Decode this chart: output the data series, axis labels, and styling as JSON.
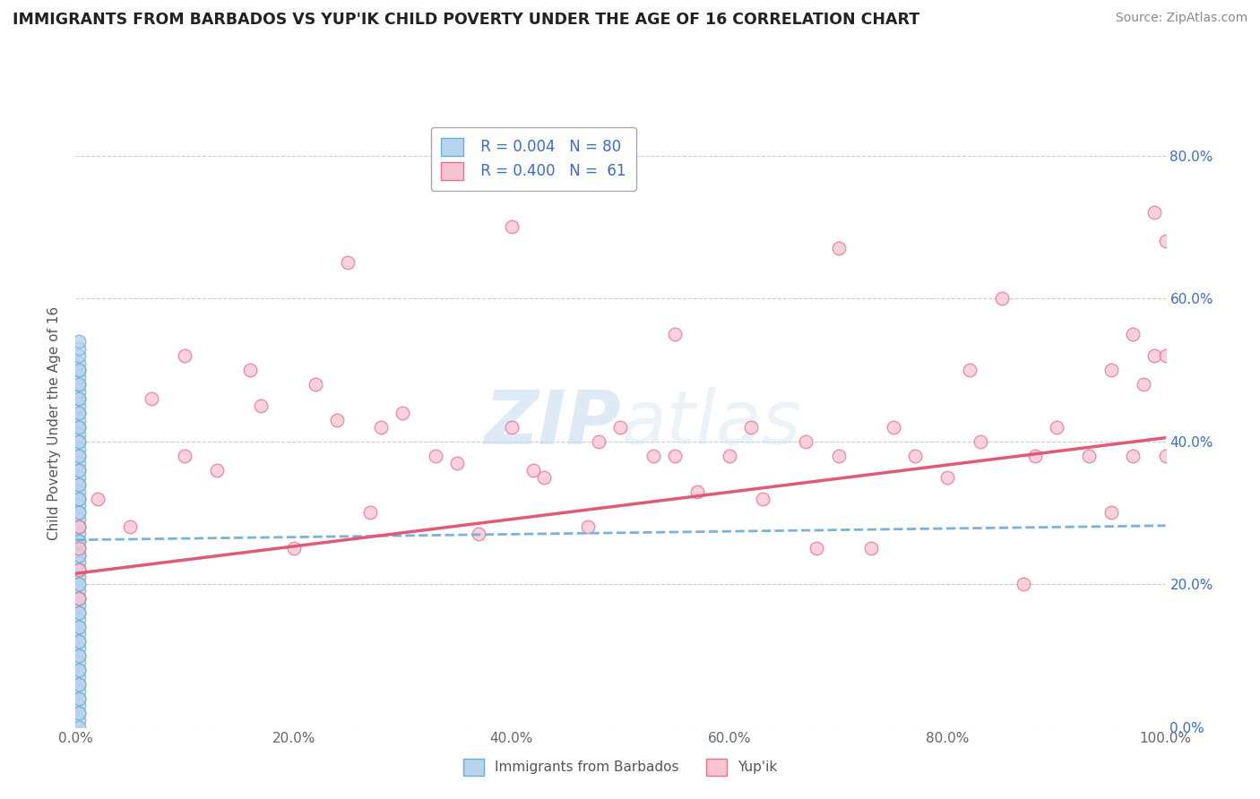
{
  "title": "IMMIGRANTS FROM BARBADOS VS YUP'IK CHILD POVERTY UNDER THE AGE OF 16 CORRELATION CHART",
  "source": "Source: ZipAtlas.com",
  "ylabel": "Child Poverty Under the Age of 16",
  "legend_labels": [
    "Immigrants from Barbados",
    "Yup'ik"
  ],
  "legend_r": [
    "R = 0.004",
    "R = 0.400"
  ],
  "legend_n": [
    "N = 80",
    "N =  61"
  ],
  "xlim": [
    0.0,
    1.0
  ],
  "ylim": [
    0.0,
    0.85
  ],
  "x_ticks": [
    0.0,
    0.2,
    0.4,
    0.6,
    0.8,
    1.0
  ],
  "x_tick_labels": [
    "0.0%",
    "20.0%",
    "40.0%",
    "60.0%",
    "80.0%",
    "100.0%"
  ],
  "y_ticks": [
    0.0,
    0.2,
    0.4,
    0.6,
    0.8
  ],
  "y_tick_labels": [
    "0.0%",
    "20.0%",
    "40.0%",
    "60.0%",
    "80.0%"
  ],
  "color_blue_fill": "#b8d4ee",
  "color_blue_edge": "#6aaed6",
  "color_pink_fill": "#f9c4d2",
  "color_pink_edge": "#e8728a",
  "color_blue_trend": "#7ab3d9",
  "color_pink_trend": "#e05a78",
  "color_title": "#222222",
  "color_source": "#888888",
  "color_grid": "#cccccc",
  "color_right_ticks": "#3b6cc5",
  "color_bottom_ticks": "#666666",
  "background": "#ffffff",
  "blue_x": [
    0.003,
    0.003,
    0.003,
    0.003,
    0.003,
    0.003,
    0.003,
    0.003,
    0.003,
    0.003,
    0.003,
    0.003,
    0.003,
    0.003,
    0.003,
    0.003,
    0.003,
    0.003,
    0.003,
    0.003,
    0.003,
    0.003,
    0.003,
    0.003,
    0.003,
    0.003,
    0.003,
    0.003,
    0.003,
    0.003,
    0.003,
    0.003,
    0.003,
    0.003,
    0.003,
    0.003,
    0.003,
    0.003,
    0.003,
    0.003,
    0.003,
    0.003,
    0.003,
    0.003,
    0.003,
    0.003,
    0.003,
    0.003,
    0.003,
    0.003,
    0.003,
    0.003,
    0.003,
    0.003,
    0.003,
    0.003,
    0.003,
    0.003,
    0.003,
    0.003,
    0.003,
    0.003,
    0.003,
    0.003,
    0.003,
    0.003,
    0.003,
    0.003,
    0.003,
    0.003,
    0.003,
    0.003,
    0.003,
    0.003,
    0.003,
    0.003,
    0.003,
    0.003,
    0.003,
    0.003
  ],
  "blue_y": [
    0.44,
    0.43,
    0.42,
    0.41,
    0.4,
    0.39,
    0.38,
    0.37,
    0.36,
    0.35,
    0.34,
    0.33,
    0.32,
    0.31,
    0.3,
    0.29,
    0.28,
    0.27,
    0.26,
    0.25,
    0.24,
    0.23,
    0.22,
    0.21,
    0.2,
    0.19,
    0.18,
    0.17,
    0.16,
    0.15,
    0.14,
    0.13,
    0.12,
    0.11,
    0.1,
    0.09,
    0.08,
    0.07,
    0.06,
    0.05,
    0.04,
    0.03,
    0.02,
    0.01,
    0.0,
    0.45,
    0.46,
    0.47,
    0.48,
    0.49,
    0.5,
    0.51,
    0.52,
    0.53,
    0.54,
    0.5,
    0.48,
    0.46,
    0.44,
    0.42,
    0.4,
    0.38,
    0.36,
    0.34,
    0.32,
    0.3,
    0.28,
    0.26,
    0.24,
    0.22,
    0.2,
    0.18,
    0.16,
    0.14,
    0.12,
    0.1,
    0.08,
    0.06,
    0.04,
    0.02
  ],
  "pink_x": [
    0.003,
    0.003,
    0.003,
    0.003,
    0.02,
    0.05,
    0.07,
    0.1,
    0.13,
    0.16,
    0.2,
    0.24,
    0.27,
    0.3,
    0.33,
    0.37,
    0.4,
    0.43,
    0.47,
    0.5,
    0.53,
    0.57,
    0.6,
    0.63,
    0.67,
    0.7,
    0.73,
    0.77,
    0.8,
    0.83,
    0.87,
    0.9,
    0.93,
    0.97,
    1.0,
    0.1,
    0.17,
    0.22,
    0.28,
    0.35,
    0.42,
    0.48,
    0.55,
    0.62,
    0.68,
    0.75,
    0.82,
    0.88,
    0.95,
    0.25,
    0.4,
    0.55,
    0.7,
    0.85,
    0.95,
    0.97,
    0.98,
    0.99,
    0.99,
    1.0,
    1.0
  ],
  "pink_y": [
    0.25,
    0.28,
    0.22,
    0.18,
    0.32,
    0.28,
    0.46,
    0.38,
    0.36,
    0.5,
    0.25,
    0.43,
    0.3,
    0.44,
    0.38,
    0.27,
    0.42,
    0.35,
    0.28,
    0.42,
    0.38,
    0.33,
    0.38,
    0.32,
    0.4,
    0.38,
    0.25,
    0.38,
    0.35,
    0.4,
    0.2,
    0.42,
    0.38,
    0.38,
    0.38,
    0.52,
    0.45,
    0.48,
    0.42,
    0.37,
    0.36,
    0.4,
    0.38,
    0.42,
    0.25,
    0.42,
    0.5,
    0.38,
    0.3,
    0.65,
    0.7,
    0.55,
    0.67,
    0.6,
    0.5,
    0.55,
    0.48,
    0.52,
    0.72,
    0.52,
    0.68
  ],
  "blue_trend_x": [
    0.0,
    1.0
  ],
  "blue_trend_y": [
    0.262,
    0.282
  ],
  "pink_trend_x": [
    0.0,
    1.0
  ],
  "pink_trend_y": [
    0.215,
    0.405
  ]
}
